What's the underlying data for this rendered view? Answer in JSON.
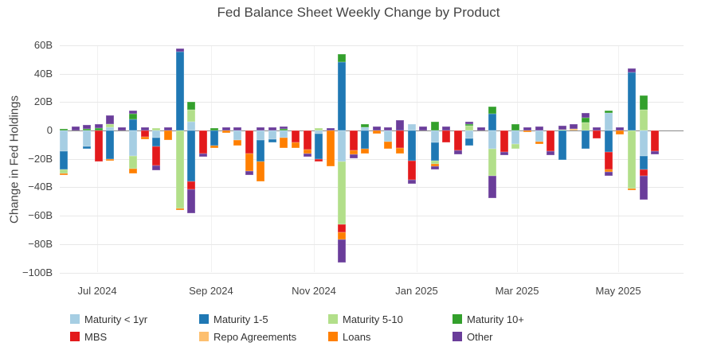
{
  "chart_data": {
    "type": "bar",
    "stacked": true,
    "orientation": "vertical",
    "title": "Fed Balance Sheet Weekly Change by Product",
    "ylabel": "Change in Fed Holdings",
    "unit": "billions USD (B)",
    "x_granularity": "weekly",
    "n_bars": 52,
    "ylim": [
      -100,
      60
    ],
    "ytick_step": 20,
    "yticks": [
      {
        "value": 60,
        "label": "60B"
      },
      {
        "value": 40,
        "label": "40B"
      },
      {
        "value": 20,
        "label": "20B"
      },
      {
        "value": 0,
        "label": "0"
      },
      {
        "value": -20,
        "label": "−20B"
      },
      {
        "value": -40,
        "label": "−40B"
      },
      {
        "value": -60,
        "label": "−60B"
      },
      {
        "value": -80,
        "label": "−80B"
      },
      {
        "value": -100,
        "label": "−100B"
      }
    ],
    "month_labels": [
      {
        "label": "Jul 2024",
        "bar_index": 2.89
      },
      {
        "label": "Sep 2024",
        "bar_index": 12.71
      },
      {
        "label": "Nov 2024",
        "bar_index": 21.58
      },
      {
        "label": "Jan 2025",
        "bar_index": 30.45
      },
      {
        "label": "Mar 2025",
        "bar_index": 39.11
      },
      {
        "label": "May 2025",
        "bar_index": 47.84
      }
    ],
    "grid": true,
    "legend_position": "bottom",
    "series": [
      {
        "name": "Maturity < 1yr",
        "color": "#a6cee3",
        "values": [
          -14.5,
          0,
          -11,
          0,
          2,
          0,
          -18,
          0,
          -5,
          0,
          0,
          6,
          0,
          0,
          0,
          -6.7,
          0,
          -7,
          -6.2,
          -5.2,
          0,
          0,
          -2,
          0,
          -22,
          0,
          2,
          0,
          -8,
          0,
          4.5,
          0,
          -8.4,
          0,
          0,
          -5.6,
          0,
          -13,
          0,
          -9.7,
          0,
          -7.8,
          0,
          0,
          0,
          0,
          0,
          12.1,
          0,
          0,
          -17.7,
          0
        ]
      },
      {
        "name": "Maturity 1-5",
        "color": "#1f78b4",
        "values": [
          -12.7,
          0,
          -1.8,
          0,
          -20,
          0,
          8,
          0,
          -6,
          0,
          55.5,
          -36,
          0,
          -10.7,
          0,
          0,
          0,
          -15,
          -2.4,
          0,
          0,
          0,
          -18.2,
          0,
          48,
          0,
          -13,
          0,
          0,
          0,
          -21.2,
          0,
          -12.8,
          0,
          0,
          -5.1,
          0,
          12,
          0,
          0,
          0,
          0,
          0,
          -20.8,
          0,
          -13,
          0,
          -15.3,
          0,
          41,
          -9.7,
          0
        ]
      },
      {
        "name": "Maturity 5-10",
        "color": "#b2df8a",
        "values": [
          -2.8,
          0,
          0,
          0,
          2.5,
          0,
          -9,
          0,
          1.8,
          0,
          -54.7,
          8.5,
          0,
          0,
          0,
          0,
          0,
          0,
          0,
          0,
          0,
          0,
          1.5,
          0,
          -44.3,
          0,
          0,
          0,
          0,
          0,
          0,
          0,
          -2.6,
          0,
          0,
          3.2,
          0,
          -19,
          0,
          -3.3,
          0,
          0,
          0,
          0.8,
          0,
          5.6,
          0,
          0,
          0,
          -41,
          14.6,
          0
        ]
      },
      {
        "name": "Maturity 10+",
        "color": "#33a02c",
        "values": [
          1.2,
          0,
          1,
          1.5,
          0,
          0,
          3.5,
          0,
          0,
          0,
          0,
          5.5,
          0,
          1.8,
          0,
          0,
          0,
          0,
          0,
          1,
          0,
          0,
          0,
          0,
          6,
          0,
          2.5,
          0,
          0,
          0,
          0,
          0,
          6,
          0,
          0,
          1.3,
          0,
          5,
          0,
          4.5,
          0,
          0,
          0,
          0,
          0,
          3.3,
          0,
          2.1,
          0,
          0,
          10.2,
          0
        ]
      },
      {
        "name": "MBS",
        "color": "#e31a1c",
        "values": [
          0,
          0,
          0,
          -22,
          0,
          0,
          0,
          -4.5,
          -13.9,
          0,
          0,
          -5.5,
          -16,
          0,
          0,
          0,
          -16.5,
          0,
          0,
          0,
          -8.6,
          -13.5,
          -1.8,
          0,
          -5.2,
          -14,
          0,
          0,
          0,
          -12.5,
          -13.4,
          0,
          0,
          -8.4,
          -14,
          0,
          0,
          0,
          -15.2,
          0,
          0,
          0,
          -14.8,
          0,
          0,
          0,
          -5.5,
          -12.1,
          0,
          0,
          -4.7,
          -14.4
        ]
      },
      {
        "name": "Repo Agreements",
        "color": "#fdbf6f",
        "values": [
          0,
          0,
          0,
          0,
          0,
          0,
          0,
          0,
          0,
          0,
          0,
          0,
          0,
          0,
          0,
          0,
          0,
          0,
          0,
          0,
          0,
          0,
          0,
          0,
          0,
          0,
          0,
          0,
          0,
          0,
          0,
          0,
          0,
          0,
          0,
          0,
          0,
          0,
          0,
          0,
          0,
          0,
          0,
          0,
          1,
          0,
          0,
          0,
          0,
          0,
          0,
          0
        ]
      },
      {
        "name": "Loans",
        "color": "#ff7f00",
        "values": [
          -1.5,
          0,
          0,
          0,
          -1.5,
          0,
          -3.5,
          -1.5,
          0,
          -6.5,
          -1.5,
          0,
          0,
          -1.5,
          -1.5,
          -3.8,
          -12,
          -14,
          0,
          -7,
          -4,
          -2.5,
          0,
          -25,
          -5.3,
          -3,
          -3,
          -2.4,
          -5,
          -3.5,
          0,
          0,
          -1.2,
          0,
          0,
          0,
          0,
          0,
          0,
          0,
          -1.3,
          -1.5,
          0,
          0,
          0,
          0,
          0,
          -1.5,
          -2.8,
          -1,
          0,
          0
        ]
      },
      {
        "name": "Other",
        "color": "#6a3d9a",
        "values": [
          0,
          3,
          2.8,
          3,
          6,
          2.2,
          2.5,
          2,
          -3.3,
          2,
          2.4,
          -17,
          -2.3,
          0,
          2.2,
          2.4,
          -2.8,
          2,
          2.3,
          1.6,
          0,
          -2.4,
          0,
          1.5,
          -16.2,
          -2.6,
          0,
          3,
          2,
          7.4,
          -2.8,
          3,
          -2.2,
          2.9,
          -2.8,
          1.5,
          2.3,
          -15.8,
          -2.2,
          0,
          2.4,
          2.8,
          -2.4,
          2.5,
          3.3,
          3.7,
          2.4,
          -3.2,
          2.2,
          2.8,
          -16.8,
          -2.4
        ]
      }
    ]
  }
}
